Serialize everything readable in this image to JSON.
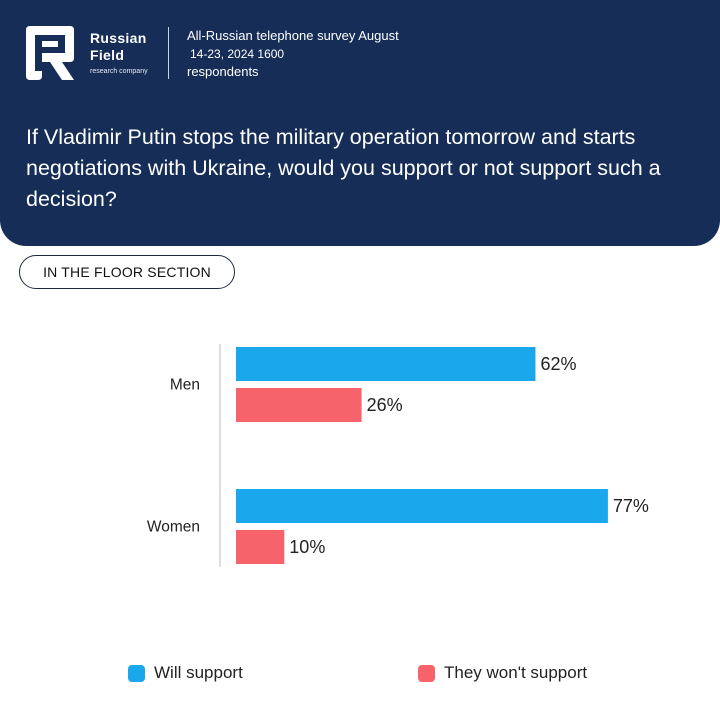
{
  "brand": {
    "name_line1": "Russian",
    "name_line2": "Field",
    "tagline": "research company"
  },
  "survey": {
    "line1": "All-Russian telephone survey August",
    "line2": "14-23, 2024 1600",
    "line3": "respondents"
  },
  "question": "If Vladimir Putin stops the military operation tomorrow and starts negotiations with Ukraine, would you support or not support such a decision?",
  "section_label": "IN THE FLOOR SECTION",
  "colors": {
    "header_bg": "#152d57",
    "will_support": "#1aa7ec",
    "wont_support": "#f7636a"
  },
  "chart_data": {
    "type": "bar",
    "orientation": "horizontal",
    "categories": [
      "Men",
      "Women"
    ],
    "series": [
      {
        "name": "Will support",
        "values": [
          62,
          77
        ],
        "labels": [
          "62%",
          "77%"
        ]
      },
      {
        "name": "They won't support",
        "values": [
          26,
          10
        ],
        "labels": [
          "26%",
          "10%"
        ]
      }
    ],
    "xlim": [
      0,
      100
    ],
    "grid": false,
    "legend_position": "bottom"
  }
}
